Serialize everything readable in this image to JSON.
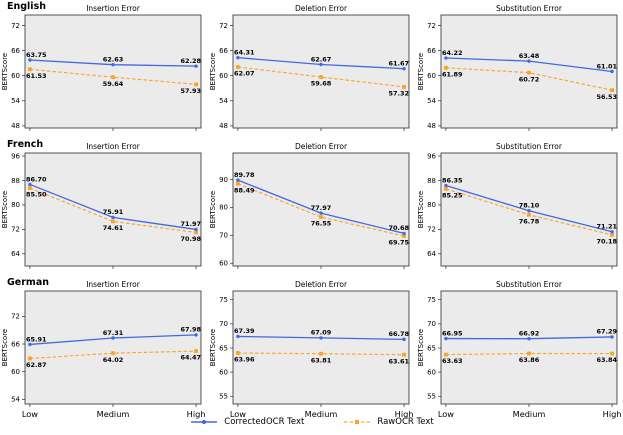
{
  "figure_background": "#ffffff",
  "chart_data": {
    "type": "line",
    "categories": [
      "Low",
      "Medium",
      "High"
    ],
    "ylabel": "BERTScore",
    "grid": false,
    "legend_position": "bottom-center",
    "colors": {
      "plot_bg": "#ebebeb",
      "spine": "#2b2b2b",
      "corrected": "#4169e1",
      "raw": "#ffa228",
      "label_text": "#000000"
    },
    "legend": [
      {
        "name": "CorrectedOCR Text",
        "color": "#4169e1",
        "style": "solid",
        "marker": "circle"
      },
      {
        "name": "RawOCR Text",
        "color": "#ffa228",
        "style": "dashed",
        "marker": "square"
      }
    ],
    "rows": [
      {
        "language": "English",
        "charts": [
          {
            "title": "Insertion Error",
            "yticks": [
              48,
              54,
              60,
              66,
              72
            ],
            "ylim": [
              47.5,
              74.5
            ],
            "series": [
              {
                "name": "CorrectedOCR Text",
                "values": [
                  63.75,
                  62.63,
                  62.28
                ]
              },
              {
                "name": "RawOCR Text",
                "values": [
                  61.53,
                  59.64,
                  57.93
                ]
              }
            ]
          },
          {
            "title": "Deletion Error",
            "yticks": [
              48,
              54,
              60,
              66,
              72
            ],
            "ylim": [
              47.5,
              74.5
            ],
            "series": [
              {
                "name": "CorrectedOCR Text",
                "values": [
                  64.31,
                  62.67,
                  61.67
                ]
              },
              {
                "name": "RawOCR Text",
                "values": [
                  62.07,
                  59.68,
                  57.32
                ]
              }
            ]
          },
          {
            "title": "Substitution Error",
            "yticks": [
              48,
              54,
              60,
              66,
              72
            ],
            "ylim": [
              47.5,
              74.5
            ],
            "series": [
              {
                "name": "CorrectedOCR Text",
                "values": [
                  64.22,
                  63.48,
                  61.01
                ]
              },
              {
                "name": "RawOCR Text",
                "values": [
                  61.89,
                  60.72,
                  56.53
                ]
              }
            ]
          }
        ]
      },
      {
        "language": "French",
        "charts": [
          {
            "title": "Insertion Error",
            "yticks": [
              64,
              72,
              80,
              88,
              96
            ],
            "ylim": [
              60,
              97
            ],
            "series": [
              {
                "name": "CorrectedOCR Text",
                "values": [
                  86.7,
                  75.91,
                  71.97
                ]
              },
              {
                "name": "RawOCR Text",
                "values": [
                  85.5,
                  74.61,
                  70.98
                ]
              }
            ]
          },
          {
            "title": "Deletion Error",
            "yticks": [
              60,
              70,
              80,
              90
            ],
            "ylim": [
              59,
              99.5
            ],
            "series": [
              {
                "name": "CorrectedOCR Text",
                "values": [
                  89.78,
                  77.97,
                  70.68
                ]
              },
              {
                "name": "RawOCR Text",
                "values": [
                  88.49,
                  76.55,
                  69.75
                ]
              }
            ]
          },
          {
            "title": "Substitution Error",
            "yticks": [
              64,
              72,
              80,
              88,
              96
            ],
            "ylim": [
              60,
              97
            ],
            "series": [
              {
                "name": "CorrectedOCR Text",
                "values": [
                  86.35,
                  78.1,
                  71.21
                ]
              },
              {
                "name": "RawOCR Text",
                "values": [
                  85.25,
                  76.78,
                  70.18
                ]
              }
            ]
          }
        ]
      },
      {
        "language": "German",
        "charts": [
          {
            "title": "Insertion Error",
            "yticks": [
              54,
              60,
              66,
              72
            ],
            "ylim": [
              53,
              77.5
            ],
            "series": [
              {
                "name": "CorrectedOCR Text",
                "values": [
                  65.91,
                  67.31,
                  67.98
                ]
              },
              {
                "name": "RawOCR Text",
                "values": [
                  62.87,
                  64.02,
                  64.47
                ]
              }
            ]
          },
          {
            "title": "Deletion Error",
            "yticks": [
              55,
              60,
              65,
              70,
              75
            ],
            "ylim": [
              53.4,
              76.8
            ],
            "series": [
              {
                "name": "CorrectedOCR Text",
                "values": [
                  67.39,
                  67.09,
                  66.78
                ]
              },
              {
                "name": "RawOCR Text",
                "values": [
                  63.96,
                  63.81,
                  63.61
                ]
              }
            ]
          },
          {
            "title": "Substitution Error",
            "yticks": [
              55,
              60,
              65,
              70,
              75
            ],
            "ylim": [
              53.4,
              76.8
            ],
            "series": [
              {
                "name": "CorrectedOCR Text",
                "values": [
                  66.95,
                  66.92,
                  67.29
                ]
              },
              {
                "name": "RawOCR Text",
                "values": [
                  63.63,
                  63.86,
                  63.84
                ]
              }
            ]
          }
        ]
      }
    ]
  }
}
